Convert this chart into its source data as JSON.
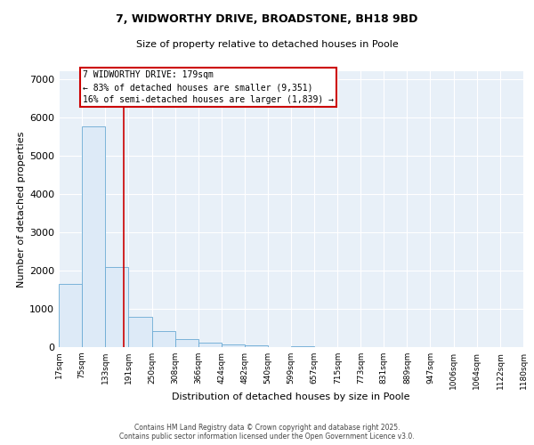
{
  "title": "7, WIDWORTHY DRIVE, BROADSTONE, BH18 9BD",
  "subtitle": "Size of property relative to detached houses in Poole",
  "xlabel": "Distribution of detached houses by size in Poole",
  "ylabel": "Number of detached properties",
  "bar_color": "#ddeaf7",
  "bar_edge_color": "#6aaad4",
  "background_color": "#e8f0f8",
  "fig_background": "#ffffff",
  "grid_color": "#ffffff",
  "bin_edges": [
    17,
    75,
    133,
    191,
    250,
    308,
    366,
    424,
    482,
    540,
    599,
    657,
    715,
    773,
    831,
    889,
    947,
    1006,
    1064,
    1122,
    1180
  ],
  "bar_heights": [
    1650,
    5750,
    2100,
    800,
    420,
    220,
    110,
    80,
    50,
    10,
    25,
    3,
    1,
    0,
    0,
    0,
    0,
    0,
    0,
    0
  ],
  "property_size": 179,
  "red_line_color": "#cc0000",
  "annotation_line1": "7 WIDWORTHY DRIVE: 179sqm",
  "annotation_line2": "← 83% of detached houses are smaller (9,351)",
  "annotation_line3": "16% of semi-detached houses are larger (1,839) →",
  "ylim": [
    0,
    7200
  ],
  "yticks": [
    0,
    1000,
    2000,
    3000,
    4000,
    5000,
    6000,
    7000
  ],
  "xtick_labels": [
    "17sqm",
    "75sqm",
    "133sqm",
    "191sqm",
    "250sqm",
    "308sqm",
    "366sqm",
    "424sqm",
    "482sqm",
    "540sqm",
    "599sqm",
    "657sqm",
    "715sqm",
    "773sqm",
    "831sqm",
    "889sqm",
    "947sqm",
    "1006sqm",
    "1064sqm",
    "1122sqm",
    "1180sqm"
  ],
  "footer_line1": "Contains HM Land Registry data © Crown copyright and database right 2025.",
  "footer_line2": "Contains public sector information licensed under the Open Government Licence v3.0."
}
